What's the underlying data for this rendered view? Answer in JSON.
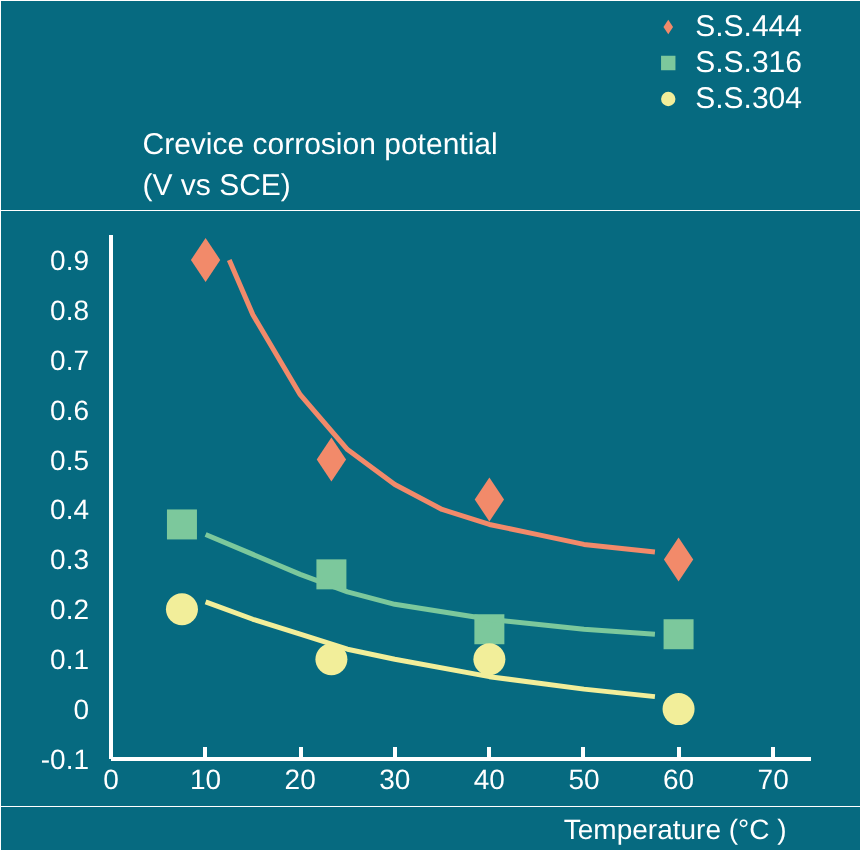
{
  "chart_data": {
    "type": "scatter",
    "ylabel": "Crevice corrosion potential\n(V vs SCE)",
    "xlabel": "Temperature (°C )",
    "xlim": [
      0,
      74
    ],
    "ylim": [
      -0.1,
      0.95
    ],
    "xticks": [
      0,
      10,
      20,
      30,
      40,
      50,
      60,
      70
    ],
    "yticks": [
      {
        "value": -0.1,
        "label": "-0.1"
      },
      0,
      0.1,
      0.2,
      0.3,
      0.4,
      0.5,
      0.6,
      0.7,
      0.8,
      0.9
    ],
    "legend": "top right",
    "grid": false,
    "series": [
      {
        "name": "S.S.444",
        "color": "#f28a6a",
        "marker": "diamond",
        "x": [
          10,
          23.3,
          40,
          60
        ],
        "values": [
          0.9,
          0.5,
          0.42,
          0.3
        ]
      },
      {
        "name": "S.S.316",
        "color": "#7cc89c",
        "marker": "square",
        "x": [
          7.5,
          23.3,
          40,
          60
        ],
        "values": [
          0.37,
          0.27,
          0.16,
          0.15
        ]
      },
      {
        "name": "S.S.304",
        "color": "#f2ee9a",
        "marker": "circle",
        "x": [
          7.5,
          23.3,
          40,
          60
        ],
        "values": [
          0.2,
          0.1,
          0.1,
          0.0
        ]
      },
      {
        "type": "line",
        "color": "#f28a6a",
        "marker": "none",
        "x": [
          12.5,
          15,
          20,
          25,
          30,
          35,
          40,
          45,
          50,
          57.5
        ],
        "values": [
          0.9,
          0.79,
          0.63,
          0.52,
          0.45,
          0.4,
          0.37,
          0.35,
          0.33,
          0.315
        ]
      },
      {
        "type": "line",
        "color": "#7cc89c",
        "marker": "none",
        "x": [
          10,
          15,
          20,
          25,
          30,
          40,
          50,
          57.5
        ],
        "values": [
          0.35,
          0.31,
          0.27,
          0.235,
          0.21,
          0.18,
          0.16,
          0.15
        ]
      },
      {
        "type": "line",
        "color": "#f2ee9a",
        "marker": "none",
        "x": [
          10,
          15,
          20,
          25,
          30,
          40,
          50,
          57.5
        ],
        "values": [
          0.215,
          0.18,
          0.15,
          0.12,
          0.1,
          0.065,
          0.04,
          0.025
        ]
      }
    ]
  }
}
